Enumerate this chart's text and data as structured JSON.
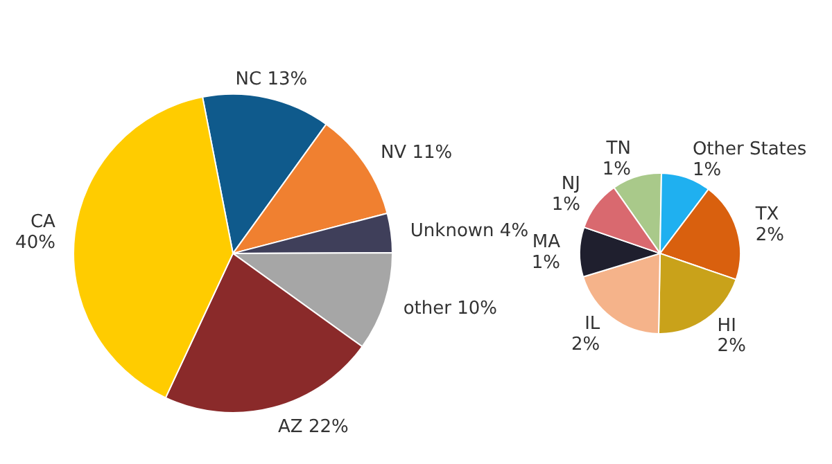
{
  "chart_data": [
    {
      "type": "pie",
      "categories": [
        "NC",
        "NV",
        "Unknown",
        "other",
        "AZ",
        "CA"
      ],
      "values": [
        13,
        11,
        4,
        10,
        22,
        40
      ],
      "value_labels": [
        "13%",
        "11%",
        "4%",
        "10%",
        "22%",
        "40%"
      ],
      "colors": [
        "#0f5a8c",
        "#f08030",
        "#3f3f5a",
        "#a6a6a6",
        "#8a2a2a",
        "#ffcc00"
      ],
      "legend": false
    },
    {
      "type": "pie",
      "categories": [
        "TN",
        "Other States",
        "TX",
        "HI",
        "IL",
        "MA",
        "NJ"
      ],
      "values": [
        1,
        1,
        2,
        2,
        2,
        1,
        1
      ],
      "value_labels": [
        "1%",
        "1%",
        "2%",
        "2%",
        "2%",
        "1%",
        "1%"
      ],
      "colors": [
        "#a9c98a",
        "#1fb0f0",
        "#d9600e",
        "#c9a21a",
        "#f5b38a",
        "#1f1f2e",
        "#d9696f"
      ],
      "legend": false
    }
  ]
}
